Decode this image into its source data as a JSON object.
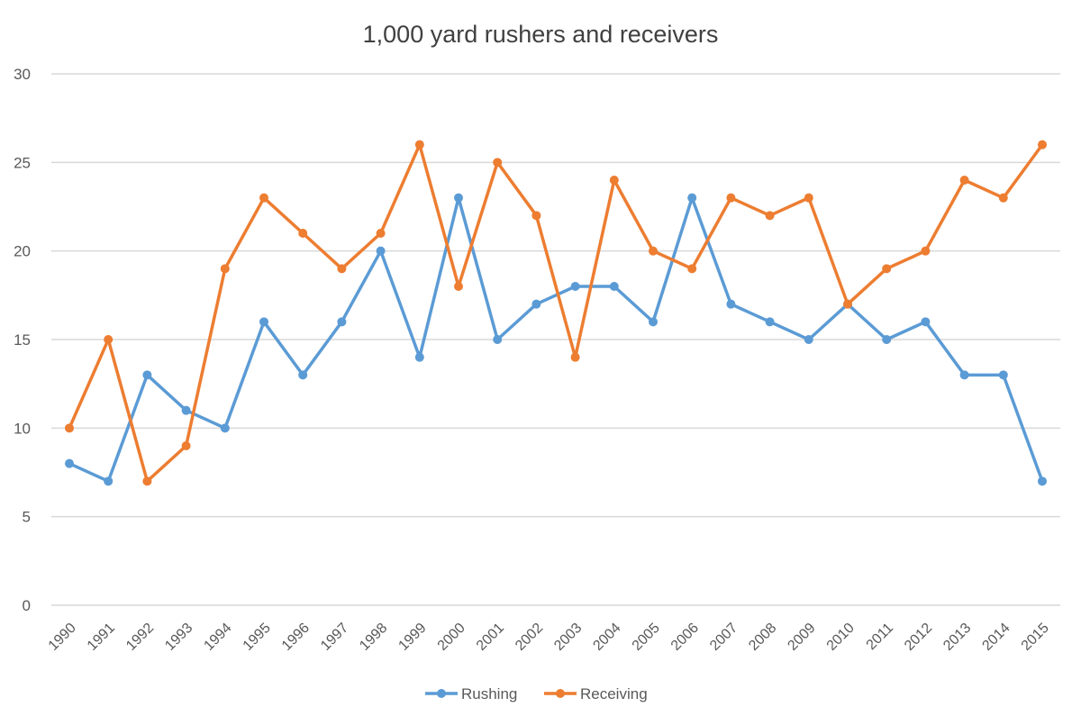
{
  "chart_data": {
    "type": "line",
    "title": "1,000 yard rushers and receivers",
    "xlabel": "",
    "ylabel": "",
    "ylim": [
      0,
      30
    ],
    "yticks": [
      0,
      5,
      10,
      15,
      20,
      25,
      30
    ],
    "grid": true,
    "legend": "bottom",
    "categories": [
      "1990",
      "1991",
      "1992",
      "1993",
      "1994",
      "1995",
      "1996",
      "1997",
      "1998",
      "1999",
      "2000",
      "2001",
      "2002",
      "2003",
      "2004",
      "2005",
      "2006",
      "2007",
      "2008",
      "2009",
      "2010",
      "2011",
      "2012",
      "2013",
      "2014",
      "2015"
    ],
    "series": [
      {
        "name": "Rushing",
        "color": "#5b9bd5",
        "values": [
          8,
          7,
          13,
          11,
          10,
          16,
          13,
          16,
          20,
          14,
          23,
          15,
          17,
          18,
          18,
          16,
          23,
          17,
          16,
          15,
          17,
          15,
          16,
          13,
          13,
          7
        ]
      },
      {
        "name": "Receiving",
        "color": "#ed7d31",
        "values": [
          10,
          15,
          7,
          9,
          19,
          23,
          21,
          19,
          21,
          26,
          18,
          25,
          22,
          14,
          24,
          20,
          19,
          23,
          22,
          23,
          17,
          19,
          20,
          24,
          23,
          26
        ]
      }
    ]
  }
}
